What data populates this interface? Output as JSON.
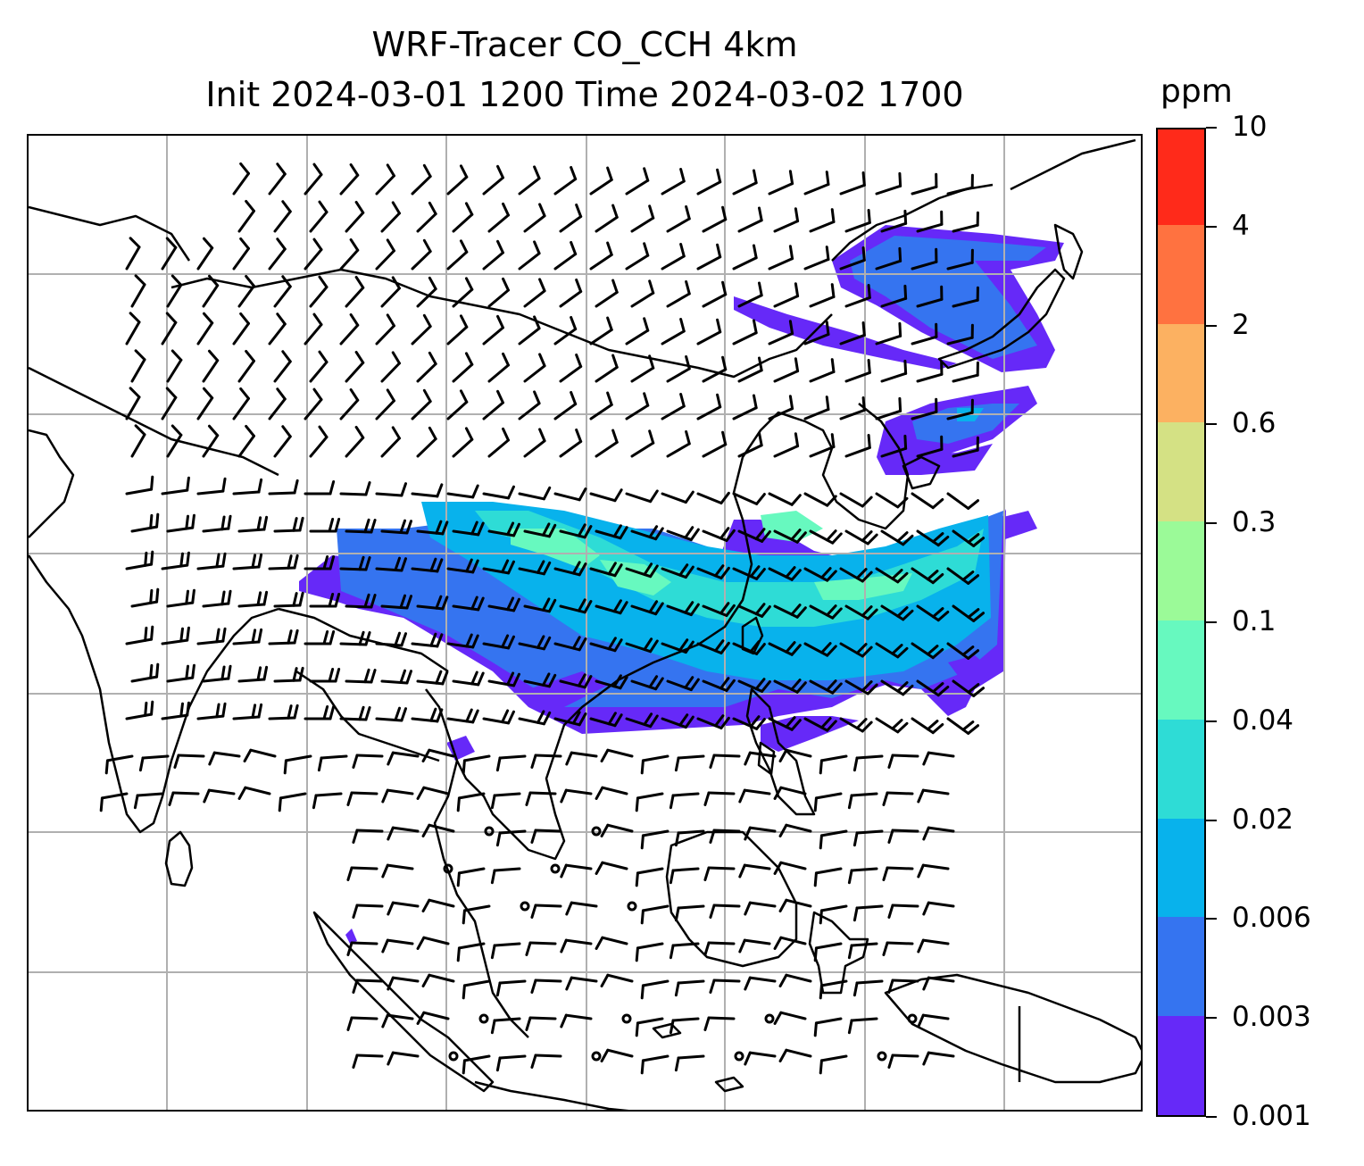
{
  "title": {
    "line1": "WRF-Tracer CO_CCH 4km",
    "line2": "Init 2024-03-01 1200 Time 2024-03-02 1700"
  },
  "colorbar": {
    "unit": "ppm",
    "levels": [
      "0.001",
      "0.003",
      "0.006",
      "0.02",
      "0.04",
      "0.1",
      "0.3",
      "0.6",
      "2",
      "4",
      "10"
    ],
    "colors": [
      "#6629f8",
      "#3574f0",
      "#08b2ec",
      "#2edcd6",
      "#67f9bf",
      "#9bfa98",
      "#d4e184",
      "#fcb161",
      "#ff7240",
      "#ff2a1a"
    ]
  },
  "map": {
    "gridlines": true,
    "coastlines": true,
    "wind_barbs": true,
    "plume_colors": [
      "#6629f8",
      "#3574f0",
      "#08b2ec",
      "#2edcd6",
      "#67f9bf"
    ]
  }
}
